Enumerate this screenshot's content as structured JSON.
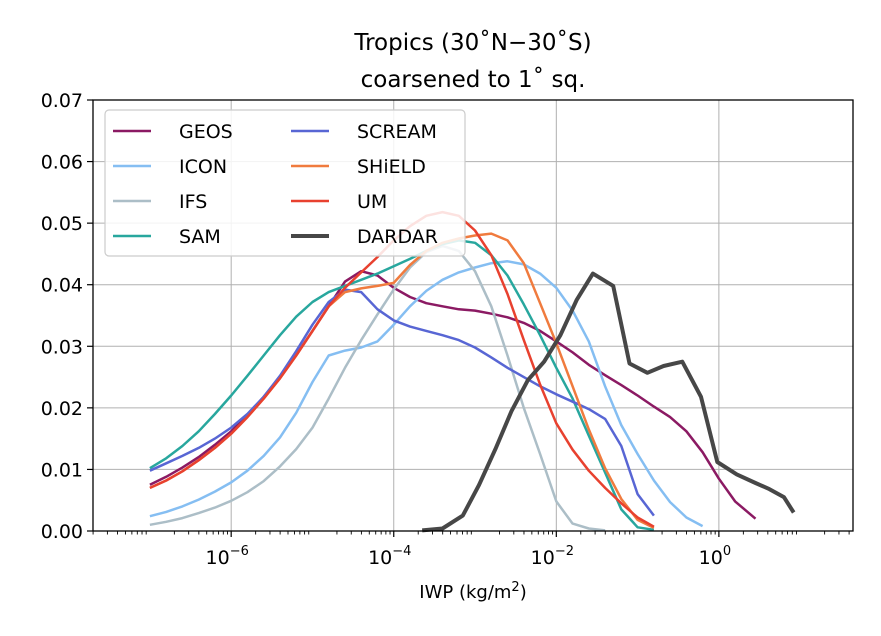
{
  "chart_data": {
    "type": "line",
    "title": "Tropics (30˚N−30˚S)",
    "subtitle": "coarsened to 1˚ sq.",
    "xlabel": "IWP (kg/m",
    "xlabel_sup": "2",
    "xlabel_close": ")",
    "xscale": "log",
    "xlim_log10": [
      -7.7,
      1.65
    ],
    "ylim": [
      0,
      0.07
    ],
    "grid": true,
    "legend_position": "upper-left",
    "x_ticks": [
      {
        "base": "10",
        "exp": "−6",
        "log10": -6
      },
      {
        "base": "10",
        "exp": "−4",
        "log10": -4
      },
      {
        "base": "10",
        "exp": "−2",
        "log10": -2
      },
      {
        "base": "10",
        "exp": "0",
        "log10": 0
      }
    ],
    "y_ticks": [
      {
        "label": "0.00",
        "value": 0.0
      },
      {
        "label": "0.01",
        "value": 0.01
      },
      {
        "label": "0.02",
        "value": 0.02
      },
      {
        "label": "0.03",
        "value": 0.03
      },
      {
        "label": "0.04",
        "value": 0.04
      },
      {
        "label": "0.05",
        "value": 0.05
      },
      {
        "label": "0.06",
        "value": 0.06
      },
      {
        "label": "0.07",
        "value": 0.07
      }
    ],
    "x_log10": [
      -7.0,
      -6.8,
      -6.6,
      -6.4,
      -6.2,
      -6.0,
      -5.8,
      -5.6,
      -5.4,
      -5.2,
      -5.0,
      -4.8,
      -4.6,
      -4.4,
      -4.2,
      -4.0,
      -3.8,
      -3.6,
      -3.4,
      -3.2,
      -3.0,
      -2.8,
      -2.6,
      -2.4,
      -2.2,
      -2.0,
      -1.8,
      -1.6,
      -1.4,
      -1.2,
      -1.0,
      -0.8,
      -0.6,
      -0.4,
      -0.2,
      0.0,
      0.2,
      0.4,
      0.6,
      0.8,
      0.9
    ],
    "series": [
      {
        "name": "GEOS",
        "color": "#8b1a63",
        "width": 2.5,
        "values": [
          0.0075,
          0.0088,
          0.0103,
          0.012,
          0.014,
          0.0162,
          0.0188,
          0.0218,
          0.025,
          0.0286,
          0.0325,
          0.0365,
          0.0405,
          0.0422,
          0.0415,
          0.0395,
          0.038,
          0.037,
          0.0365,
          0.036,
          0.0358,
          0.0353,
          0.0347,
          0.0338,
          0.0325,
          0.0308,
          0.029,
          0.027,
          0.0253,
          0.0237,
          0.022,
          0.0202,
          0.0185,
          0.0162,
          0.0128,
          0.0085,
          0.0048,
          0.002
        ]
      },
      {
        "name": "ICON",
        "color": "#85bef2",
        "width": 2.5,
        "values": [
          0.0024,
          0.0031,
          0.004,
          0.0051,
          0.0064,
          0.0079,
          0.0098,
          0.0122,
          0.0152,
          0.0192,
          0.0242,
          0.0285,
          0.0293,
          0.0298,
          0.0308,
          0.0335,
          0.0365,
          0.039,
          0.0408,
          0.042,
          0.0428,
          0.0435,
          0.0438,
          0.0433,
          0.0418,
          0.0395,
          0.0358,
          0.0308,
          0.0235,
          0.0172,
          0.0125,
          0.0082,
          0.0047,
          0.0022,
          0.0008
        ]
      },
      {
        "name": "IFS",
        "color": "#acbec7",
        "width": 2.5,
        "values": [
          0.001,
          0.0015,
          0.0021,
          0.0029,
          0.0038,
          0.0049,
          0.0063,
          0.0081,
          0.0105,
          0.0133,
          0.0168,
          0.0215,
          0.0265,
          0.031,
          0.0352,
          0.0392,
          0.0428,
          0.0453,
          0.0463,
          0.0455,
          0.0422,
          0.0365,
          0.0285,
          0.02,
          0.0125,
          0.0048,
          0.0012,
          0.0004,
          0.0001
        ]
      },
      {
        "name": "SAM",
        "color": "#28a79e",
        "width": 2.5,
        "values": [
          0.0102,
          0.0118,
          0.0138,
          0.0162,
          0.019,
          0.022,
          0.0252,
          0.0285,
          0.0318,
          0.0348,
          0.0372,
          0.0388,
          0.0398,
          0.0408,
          0.0418,
          0.043,
          0.0442,
          0.0455,
          0.0466,
          0.0472,
          0.0468,
          0.0448,
          0.0415,
          0.0368,
          0.0318,
          0.0265,
          0.0215,
          0.0155,
          0.0095,
          0.0035,
          0.0006,
          0.0002
        ]
      },
      {
        "name": "SCREAM",
        "color": "#5866d4",
        "width": 2.5,
        "values": [
          0.0098,
          0.011,
          0.0122,
          0.0135,
          0.015,
          0.0168,
          0.019,
          0.0218,
          0.0252,
          0.0292,
          0.0335,
          0.0372,
          0.0392,
          0.0388,
          0.036,
          0.0342,
          0.0332,
          0.0325,
          0.0318,
          0.031,
          0.0298,
          0.0282,
          0.0265,
          0.025,
          0.0235,
          0.0222,
          0.021,
          0.0198,
          0.0182,
          0.0138,
          0.006,
          0.0025
        ]
      },
      {
        "name": "SHiELD",
        "color": "#f07b3e",
        "width": 2.5,
        "values": [
          0.007,
          0.0082,
          0.0097,
          0.0115,
          0.0135,
          0.0158,
          0.0185,
          0.0215,
          0.0248,
          0.0285,
          0.0325,
          0.0365,
          0.0388,
          0.0394,
          0.0398,
          0.0403,
          0.0432,
          0.0455,
          0.0468,
          0.0475,
          0.048,
          0.0483,
          0.0472,
          0.0435,
          0.037,
          0.0305,
          0.0235,
          0.0165,
          0.0102,
          0.0052,
          0.0018,
          0.0005
        ]
      },
      {
        "name": "UM",
        "color": "#e8412f",
        "width": 2.5,
        "values": [
          0.007,
          0.0082,
          0.0097,
          0.0115,
          0.0135,
          0.0158,
          0.0185,
          0.0215,
          0.0248,
          0.0285,
          0.0325,
          0.0365,
          0.0395,
          0.042,
          0.0445,
          0.0472,
          0.0495,
          0.0512,
          0.0518,
          0.0512,
          0.0488,
          0.0448,
          0.0385,
          0.031,
          0.0238,
          0.0175,
          0.0132,
          0.0098,
          0.007,
          0.0045,
          0.0022,
          0.0007
        ]
      },
      {
        "name": "DARDAR",
        "color": "#474747",
        "width": 4,
        "values": [
          0.0001,
          0.0004,
          0.0025,
          0.0075,
          0.0133,
          0.0195,
          0.0245,
          0.0275,
          0.0318,
          0.0375,
          0.0418,
          0.0398,
          0.0272,
          0.0257,
          0.0268,
          0.0275,
          0.0218,
          0.0112,
          0.0092,
          0.0078,
          0.0068,
          0.0055,
          0.003
        ]
      }
    ],
    "series_start_index": {
      "GEOS": 0,
      "ICON": 0,
      "IFS": 0,
      "SAM": 0,
      "SCREAM": 0,
      "SHiELD": 0,
      "UM": 0,
      "DARDAR": 17
    },
    "series_x_overrides": {
      "GEOS": [
        -7.0,
        -6.8,
        -6.6,
        -6.4,
        -6.2,
        -6.0,
        -5.8,
        -5.6,
        -5.4,
        -5.2,
        -5.0,
        -4.8,
        -4.6,
        -4.4,
        -4.2,
        -4.0,
        -3.8,
        -3.6,
        -3.4,
        -3.2,
        -3.0,
        -2.8,
        -2.6,
        -2.4,
        -2.2,
        -2.0,
        -1.8,
        -1.6,
        -1.4,
        -1.2,
        -1.0,
        -0.8,
        -0.6,
        -0.4,
        -0.2,
        0.0,
        0.2,
        0.45,
        0.72,
        0.92
      ],
      "ICON": [
        -7.0,
        -6.8,
        -6.6,
        -6.4,
        -6.2,
        -6.0,
        -5.8,
        -5.6,
        -5.4,
        -5.2,
        -5.0,
        -4.8,
        -4.6,
        -4.4,
        -4.2,
        -4.0,
        -3.8,
        -3.6,
        -3.4,
        -3.2,
        -3.0,
        -2.8,
        -2.6,
        -2.4,
        -2.2,
        -2.0,
        -1.8,
        -1.6,
        -1.4,
        -1.2,
        -1.0,
        -0.8,
        -0.6,
        -0.4,
        -0.2,
        0.0,
        0.2,
        0.45,
        0.72,
        0.92
      ],
      "IFS": [
        -7.0,
        -6.8,
        -6.6,
        -6.4,
        -6.2,
        -6.0,
        -5.8,
        -5.6,
        -5.4,
        -5.2,
        -5.0,
        -4.8,
        -4.6,
        -4.4,
        -4.2,
        -4.0,
        -3.8,
        -3.6,
        -3.4,
        -3.2,
        -3.0,
        -2.8,
        -2.6,
        -2.4,
        -2.2,
        -2.0,
        -1.8,
        -1.6,
        -1.4,
        -1.2,
        -1.0,
        -0.8,
        -0.6,
        -0.4,
        -0.2,
        0.0,
        0.2,
        0.45,
        0.72,
        0.92
      ],
      "SAM": [
        -7.0,
        -6.8,
        -6.6,
        -6.4,
        -6.2,
        -6.0,
        -5.8,
        -5.6,
        -5.4,
        -5.2,
        -5.0,
        -4.8,
        -4.6,
        -4.4,
        -4.2,
        -4.0,
        -3.8,
        -3.6,
        -3.4,
        -3.2,
        -3.0,
        -2.8,
        -2.6,
        -2.4,
        -2.2,
        -2.0,
        -1.8,
        -1.6,
        -1.4,
        -1.2,
        -1.0,
        -0.8,
        -0.6,
        -0.4,
        -0.2,
        0.0,
        0.2,
        0.45,
        0.72,
        0.92
      ],
      "SCREAM": [
        -7.0,
        -6.8,
        -6.6,
        -6.4,
        -6.2,
        -6.0,
        -5.8,
        -5.6,
        -5.4,
        -5.2,
        -5.0,
        -4.8,
        -4.6,
        -4.4,
        -4.2,
        -4.0,
        -3.8,
        -3.6,
        -3.4,
        -3.2,
        -3.0,
        -2.8,
        -2.6,
        -2.4,
        -2.2,
        -2.0,
        -1.8,
        -1.6,
        -1.4,
        -1.2,
        -1.0,
        -0.8,
        -0.6,
        -0.4,
        -0.2,
        0.0,
        0.2,
        0.45,
        0.72,
        0.92
      ],
      "SHiELD": [
        -7.0,
        -6.8,
        -6.6,
        -6.4,
        -6.2,
        -6.0,
        -5.8,
        -5.6,
        -5.4,
        -5.2,
        -5.0,
        -4.8,
        -4.6,
        -4.4,
        -4.2,
        -4.0,
        -3.8,
        -3.6,
        -3.4,
        -3.2,
        -3.0,
        -2.8,
        -2.6,
        -2.4,
        -2.2,
        -2.0,
        -1.8,
        -1.6,
        -1.4,
        -1.2,
        -1.0,
        -0.8,
        -0.6,
        -0.4,
        -0.2,
        0.0,
        0.2,
        0.45,
        0.72,
        0.92
      ],
      "UM": [
        -7.0,
        -6.8,
        -6.6,
        -6.4,
        -6.2,
        -6.0,
        -5.8,
        -5.6,
        -5.4,
        -5.2,
        -5.0,
        -4.8,
        -4.6,
        -4.4,
        -4.2,
        -4.0,
        -3.8,
        -3.6,
        -3.4,
        -3.2,
        -3.0,
        -2.8,
        -2.6,
        -2.4,
        -2.2,
        -2.0,
        -1.8,
        -1.6,
        -1.4,
        -1.2,
        -1.0,
        -0.8,
        -0.6,
        -0.4,
        -0.2,
        0.0,
        0.2,
        0.45,
        0.72,
        0.92
      ],
      "DARDAR": [
        -3.65,
        -3.4,
        -3.15,
        -2.95,
        -2.75,
        -2.55,
        -2.35,
        -2.15,
        -1.95,
        -1.75,
        -1.55,
        -1.3,
        -1.1,
        -0.88,
        -0.68,
        -0.45,
        -0.22,
        -0.02,
        0.22,
        0.45,
        0.62,
        0.8,
        0.92
      ]
    }
  }
}
